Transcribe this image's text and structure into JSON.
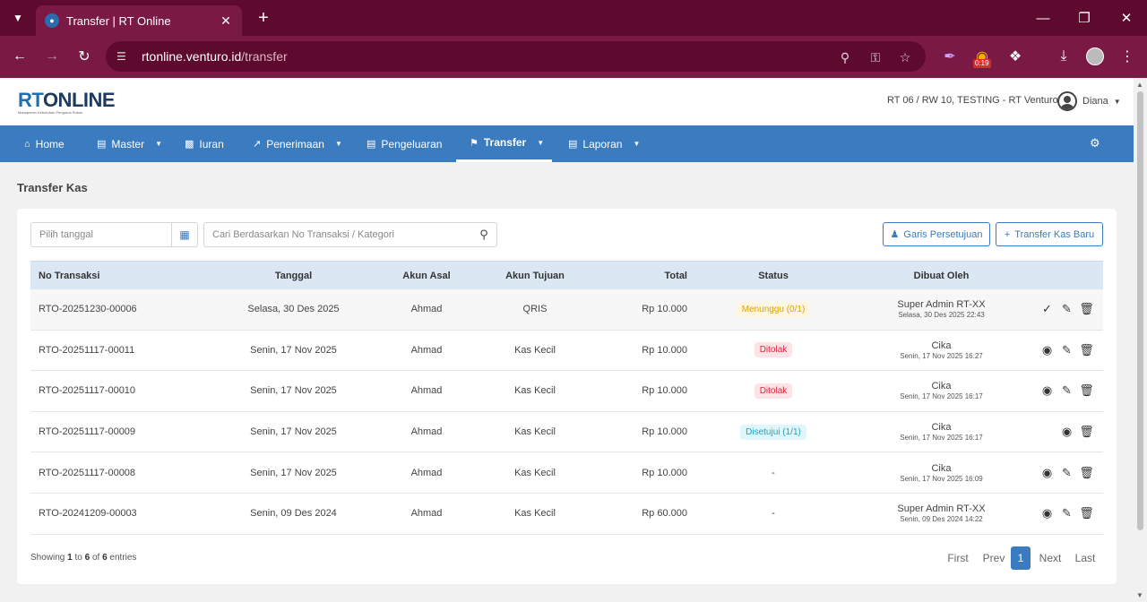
{
  "browser": {
    "tab_title": "Transfer | RT Online",
    "url_host": "rtonline.venturo.id",
    "url_path": "/transfer",
    "timer_badge": "0:19"
  },
  "header": {
    "logo_rt": "RT",
    "logo_online": "ONLINE",
    "logo_tagline": "Manajemen Kebutuhan Pengurus Rukun",
    "org_info": "RT 06 / RW 10, TESTING - RT Venturo",
    "user_name": "Diana"
  },
  "nav": [
    {
      "label": "Home"
    },
    {
      "label": "Master"
    },
    {
      "label": "Iuran"
    },
    {
      "label": "Penerimaan"
    },
    {
      "label": "Pengeluaran"
    },
    {
      "label": "Transfer"
    },
    {
      "label": "Laporan"
    }
  ],
  "page_title": "Transfer Kas",
  "filters": {
    "date_placeholder": "Pilih tanggal",
    "search_placeholder": "Cari Berdasarkan No Transaksi / Kategori"
  },
  "buttons": {
    "garis": "Garis Persetujuan",
    "new_transfer": "Transfer Kas Baru"
  },
  "table": {
    "headers": [
      "No Transaksi",
      "Tanggal",
      "Akun Asal",
      "Akun Tujuan",
      "Total",
      "Status",
      "Dibuat Oleh"
    ],
    "rows": [
      {
        "no": "RTO-20251230-00006",
        "tanggal": "Selasa, 30 Des 2025",
        "asal": "Ahmad",
        "tujuan": "QRIS",
        "total": "Rp 10.000",
        "status": "Menunggu (0/1)",
        "oleh": "Super Admin RT-XX",
        "waktu": "Selasa, 30 Des 2025 22:43"
      },
      {
        "no": "RTO-20251117-00011",
        "tanggal": "Senin, 17 Nov 2025",
        "asal": "Ahmad",
        "tujuan": "Kas Kecil",
        "total": "Rp 10.000",
        "status": "Ditolak",
        "oleh": "Cika",
        "waktu": "Senin, 17 Nov 2025 16:27"
      },
      {
        "no": "RTO-20251117-00010",
        "tanggal": "Senin, 17 Nov 2025",
        "asal": "Ahmad",
        "tujuan": "Kas Kecil",
        "total": "Rp 10.000",
        "status": "Ditolak",
        "oleh": "Cika",
        "waktu": "Senin, 17 Nov 2025 16:17"
      },
      {
        "no": "RTO-20251117-00009",
        "tanggal": "Senin, 17 Nov 2025",
        "asal": "Ahmad",
        "tujuan": "Kas Kecil",
        "total": "Rp 10.000",
        "status": "Disetujui (1/1)",
        "oleh": "Cika",
        "waktu": "Senin, 17 Nov 2025 16:17"
      },
      {
        "no": "RTO-20251117-00008",
        "tanggal": "Senin, 17 Nov 2025",
        "asal": "Ahmad",
        "tujuan": "Kas Kecil",
        "total": "Rp 10.000",
        "status": "-",
        "oleh": "Cika",
        "waktu": "Senin, 17 Nov 2025 16:09"
      },
      {
        "no": "RTO-20241209-00003",
        "tanggal": "Senin, 09 Des 2024",
        "asal": "Ahmad",
        "tujuan": "Kas Kecil",
        "total": "Rp 60.000",
        "status": "-",
        "oleh": "Super Admin RT-XX",
        "waktu": "Senin, 09 Des 2024 14:22"
      }
    ]
  },
  "footer": {
    "showing": "Showing",
    "from": "1",
    "to_word": "to",
    "to": "6",
    "of_word": "of",
    "total": "6",
    "entries": "entries"
  },
  "pagination": {
    "first": "First",
    "prev": "Prev",
    "current": "1",
    "next": "Next",
    "last": "Last"
  }
}
